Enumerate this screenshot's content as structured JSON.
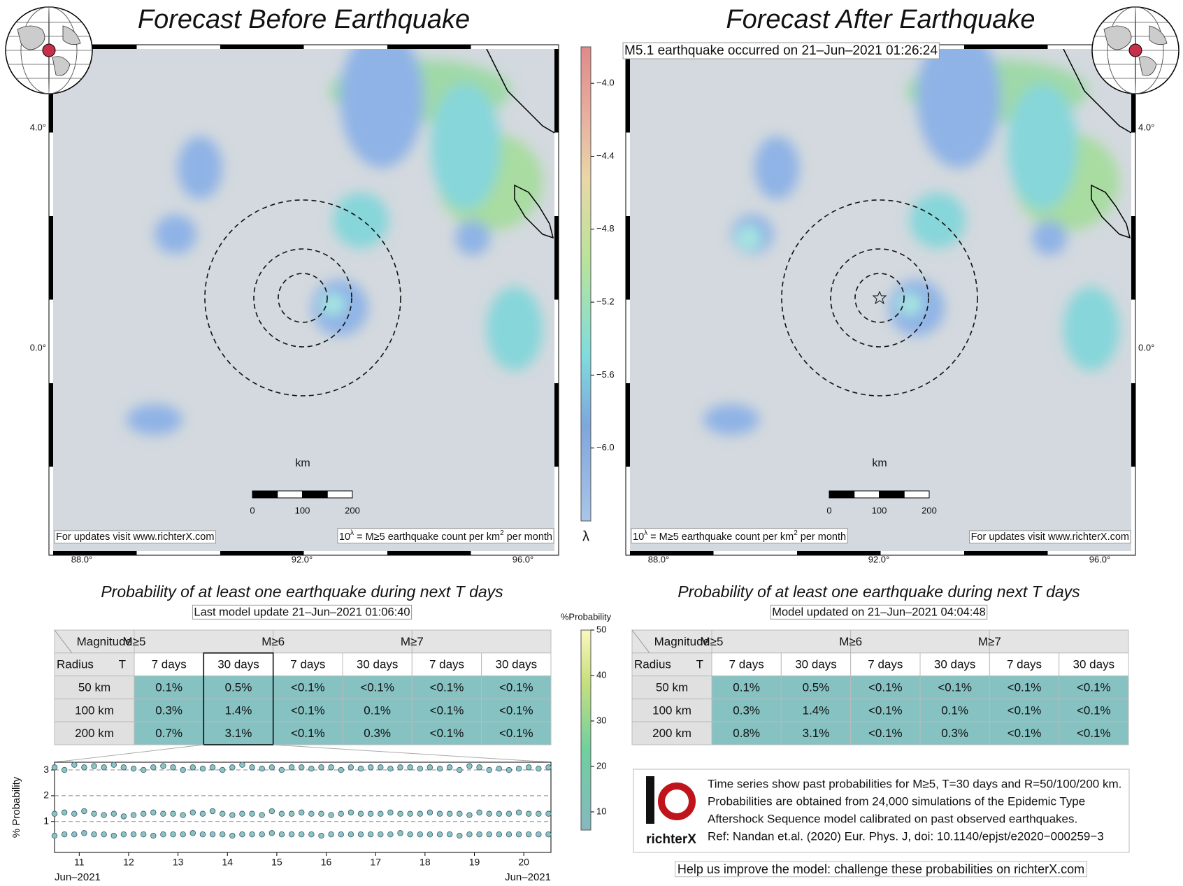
{
  "panels": [
    {
      "title": "Forecast Before Earthquake",
      "lat_labels": [
        "4.0°",
        "0.0°"
      ],
      "lon_labels": [
        "88.0°",
        "92.0°",
        "96.0°"
      ],
      "scale_label": "km",
      "scale_ticks": [
        0,
        100,
        200
      ],
      "website_note": "For updates visit www.richterX.com",
      "unit_note": [
        "10",
        "λ",
        " = M≥5 earthquake count per km",
        "2",
        " per month"
      ],
      "prob_title": "Probability of at least one earthquake during next T days",
      "model_update": "Last model update 21–Jun–2021 01:06:40"
    },
    {
      "title": "Forecast After Earthquake",
      "event": "M5.1 earthquake occurred on 21–Jun–2021 01:26:24",
      "lat_labels": [
        "4.0°",
        "0.0°"
      ],
      "lon_labels": [
        "88.0°",
        "92.0°",
        "96.0°"
      ],
      "scale_label": "km",
      "scale_ticks": [
        0,
        100,
        200
      ],
      "website_note": "For updates visit www.richterX.com",
      "unit_note": [
        "10",
        "λ",
        " = M≥5 earthquake count per km",
        "2",
        " per month"
      ],
      "prob_title": "Probability of at least one earthquake during next T days",
      "model_update": "Model updated on 21–Jun–2021 04:04:48"
    }
  ],
  "colorbar": {
    "lim": [
      -6.4,
      -3.8
    ],
    "label": "λ",
    "ticks": [
      {
        "value": -4.0,
        "label": "−4.0"
      },
      {
        "value": -4.4,
        "label": "−4.4"
      },
      {
        "value": -4.8,
        "label": "−4.8"
      },
      {
        "value": -5.2,
        "label": "−5.2"
      },
      {
        "value": -5.6,
        "label": "−5.6"
      },
      {
        "value": -6.0,
        "label": "−6.0"
      }
    ]
  },
  "prob_colorbar": {
    "label": "%Probability",
    "lim": [
      6,
      50
    ],
    "ticks": [
      10,
      20,
      30,
      40,
      50
    ]
  },
  "tables": [
    {
      "header": [
        [
          "Magnitude",
          "M≥5",
          "M≥6",
          "M≥7"
        ],
        [
          "Radius",
          "T",
          "7 days",
          "30 days",
          "7 days",
          "30 days",
          "7 days",
          "30 days"
        ]
      ],
      "rows": [
        [
          "50 km",
          "0.1%",
          "0.5%",
          "<0.1%",
          "<0.1%",
          "<0.1%",
          "<0.1%"
        ],
        [
          "100 km",
          "0.3%",
          "1.4%",
          "<0.1%",
          "0.1%",
          "<0.1%",
          "<0.1%"
        ],
        [
          "200 km",
          "0.7%",
          "3.1%",
          "<0.1%",
          "0.3%",
          "<0.1%",
          "<0.1%"
        ]
      ]
    },
    {
      "header": [
        [
          "Magnitude",
          "M≥5",
          "M≥6",
          "M≥7"
        ],
        [
          "Radius",
          "T",
          "7 days",
          "30 days",
          "7 days",
          "30 days",
          "7 days",
          "30 days"
        ]
      ],
      "rows": [
        [
          "50 km",
          "0.1%",
          "0.5%",
          "<0.1%",
          "<0.1%",
          "<0.1%",
          "<0.1%"
        ],
        [
          "100 km",
          "0.3%",
          "1.4%",
          "<0.1%",
          "0.1%",
          "<0.1%",
          "<0.1%"
        ],
        [
          "200 km",
          "0.8%",
          "3.1%",
          "<0.1%",
          "0.3%",
          "<0.1%",
          "<0.1%"
        ]
      ]
    }
  ],
  "chart_data": {
    "type": "scatter",
    "ylabel": "% Probability",
    "date_labels": [
      "Jun–2021",
      "Jun–2021"
    ],
    "xlim": [
      10.5,
      20.55
    ],
    "xticks": [
      11,
      12,
      13,
      14,
      15,
      16,
      17,
      18,
      19,
      20
    ],
    "ylim": [
      -0.2,
      3.3
    ],
    "yticks": [
      1,
      2,
      3
    ],
    "grid": true,
    "x": [
      10.5,
      10.7,
      10.9,
      11.1,
      11.3,
      11.5,
      11.7,
      11.9,
      12.1,
      12.3,
      12.5,
      12.7,
      12.9,
      13.1,
      13.3,
      13.5,
      13.7,
      13.9,
      14.1,
      14.3,
      14.5,
      14.7,
      14.9,
      15.1,
      15.3,
      15.5,
      15.7,
      15.9,
      16.1,
      16.3,
      16.5,
      16.7,
      16.9,
      17.1,
      17.3,
      17.5,
      17.7,
      17.9,
      18.1,
      18.3,
      18.5,
      18.7,
      18.9,
      19.1,
      19.3,
      19.5,
      19.7,
      19.9,
      20.1,
      20.3,
      20.5
    ],
    "series": [
      {
        "color": "#8cc4c4",
        "values": [
          3.1,
          3.0,
          3.2,
          3.1,
          3.15,
          3.1,
          3.2,
          3.1,
          3.05,
          3.0,
          3.1,
          3.15,
          3.1,
          3.0,
          3.1,
          3.05,
          3.1,
          3.0,
          3.1,
          3.2,
          3.1,
          3.05,
          3.1,
          3.0,
          3.1,
          3.1,
          3.05,
          3.1,
          3.1,
          3.0,
          3.1,
          3.05,
          3.1,
          3.1,
          3.05,
          3.1,
          3.1,
          3.05,
          3.1,
          3.05,
          3.1,
          3.0,
          3.15,
          3.1,
          3.0,
          3.05,
          3.0,
          3.05,
          3.1,
          3.05,
          3.1
        ]
      },
      {
        "color": "#8cc4c4",
        "values": [
          1.3,
          1.35,
          1.3,
          1.4,
          1.3,
          1.25,
          1.3,
          1.2,
          1.25,
          1.3,
          1.35,
          1.3,
          1.3,
          1.25,
          1.35,
          1.3,
          1.4,
          1.3,
          1.25,
          1.3,
          1.3,
          1.25,
          1.4,
          1.3,
          1.3,
          1.35,
          1.3,
          1.3,
          1.25,
          1.3,
          1.35,
          1.3,
          1.3,
          1.3,
          1.35,
          1.3,
          1.3,
          1.3,
          1.35,
          1.3,
          1.3,
          1.3,
          1.25,
          1.35,
          1.3,
          1.3,
          1.3,
          1.35,
          1.3,
          1.3,
          1.3
        ]
      },
      {
        "color": "#8cc4c4",
        "values": [
          0.45,
          0.5,
          0.5,
          0.55,
          0.5,
          0.5,
          0.45,
          0.5,
          0.5,
          0.5,
          0.45,
          0.5,
          0.5,
          0.5,
          0.55,
          0.5,
          0.5,
          0.5,
          0.45,
          0.5,
          0.5,
          0.5,
          0.55,
          0.5,
          0.5,
          0.5,
          0.5,
          0.45,
          0.5,
          0.5,
          0.5,
          0.5,
          0.5,
          0.5,
          0.5,
          0.55,
          0.5,
          0.5,
          0.5,
          0.5,
          0.5,
          0.45,
          0.5,
          0.5,
          0.5,
          0.5,
          0.5,
          0.5,
          0.5,
          0.5,
          0.5
        ]
      }
    ]
  },
  "info": {
    "lines": [
      "Time series show past probabilities for M≥5, T=30 days and R=50/100/200 km.",
      "Probabilities are obtained from 24,000 simulations of the Epidemic Type",
      "Aftershock Sequence model calibrated on past observed earthquakes.",
      "Ref: Nandan et.al. (2020) Eur. Phys. J, doi: 10.1140/epjst/e2020−000259−3"
    ],
    "logo": "richterX"
  },
  "footer": "Help us improve the model: challenge these probabilities on richterX.com"
}
